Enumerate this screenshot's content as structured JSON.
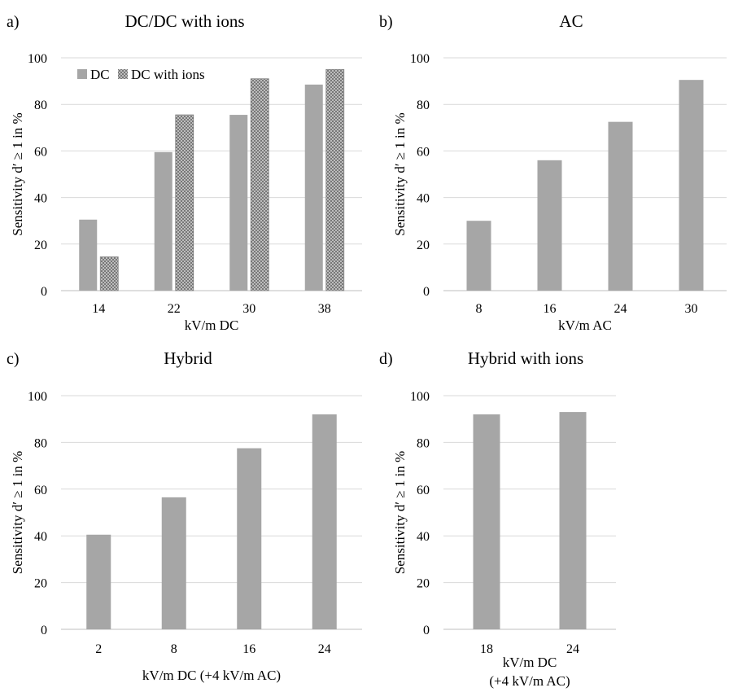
{
  "colors": {
    "bar": "#a6a6a6",
    "grid": "#d9d9d9",
    "dot": "#404040",
    "dotted_bg": "#bdbdbd"
  },
  "chart_data": [
    {
      "letter": "a)",
      "title": "DC/DC with ions",
      "type": "bar",
      "categories": [
        "14",
        "22",
        "30",
        "38"
      ],
      "series": [
        {
          "name": "DC",
          "values": [
            30.5,
            59.5,
            75.5,
            88.5
          ],
          "pattern": "solid"
        },
        {
          "name": "DC with ions",
          "values": [
            14.5,
            75.5,
            91,
            95
          ],
          "pattern": "dotted"
        }
      ],
      "xlabel": [
        "kV/m DC"
      ],
      "ylabel": "Sensitivity d′ ≥ 1 in %",
      "ylim": [
        0,
        100
      ],
      "yticks": [
        "0",
        "20",
        "40",
        "60",
        "80",
        "100"
      ],
      "legend": "top-left"
    },
    {
      "letter": "b)",
      "title": "AC",
      "type": "bar",
      "categories": [
        "8",
        "16",
        "24",
        "30"
      ],
      "series": [
        {
          "values": [
            30,
            56,
            72.5,
            90.5
          ],
          "pattern": "solid"
        }
      ],
      "xlabel": [
        "kV/m AC"
      ],
      "ylabel": "Sensitivity d′ ≥ 1 in %",
      "ylim": [
        0,
        100
      ],
      "yticks": [
        "0",
        "20",
        "40",
        "60",
        "80",
        "100"
      ]
    },
    {
      "letter": "c)",
      "title": "Hybrid",
      "type": "bar",
      "categories": [
        "2",
        "8",
        "16",
        "24"
      ],
      "series": [
        {
          "values": [
            40.5,
            56.5,
            77.5,
            92
          ],
          "pattern": "solid"
        }
      ],
      "xlabel": [
        "kV/m DC (+4 kV/m AC)"
      ],
      "ylabel": "Sensitivity d′ ≥ 1 in %",
      "ylim": [
        0,
        100
      ],
      "yticks": [
        "0",
        "20",
        "40",
        "60",
        "80",
        "100"
      ]
    },
    {
      "letter": "d)",
      "title": "Hybrid with ions",
      "type": "bar",
      "categories": [
        "18",
        "24"
      ],
      "series": [
        {
          "values": [
            92,
            93
          ],
          "pattern": "solid"
        }
      ],
      "xlabel": [
        "kV/m DC",
        "(+4 kV/m AC)"
      ],
      "ylabel": "Sensitivity d′ ≥ 1 in %",
      "ylim": [
        0,
        100
      ],
      "yticks": [
        "0",
        "20",
        "40",
        "60",
        "80",
        "100"
      ]
    }
  ]
}
